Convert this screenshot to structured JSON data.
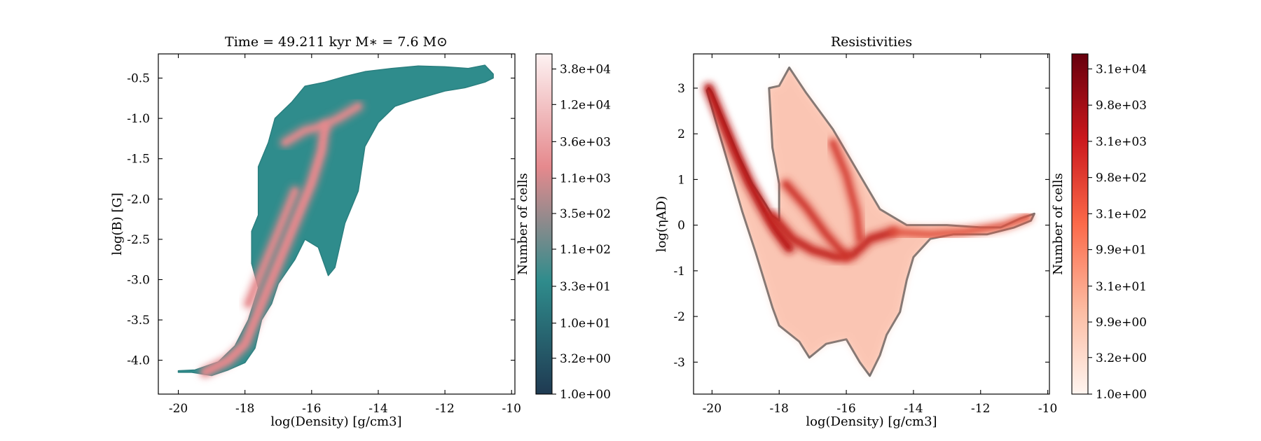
{
  "panels": [
    {
      "title": "Time = 49.211 kyr    M∗ = 7.6 M⊙",
      "xlabel": "log(Density) [g/cm3]",
      "ylabel": "log(B) [G]",
      "colormap": "teal-to-pink",
      "colorbar_label": "Number of cells"
    },
    {
      "title": "Resistivities",
      "xlabel": "log(Density) [g/cm3]",
      "ylabel": "log(ηAD)",
      "colormap": "Reds",
      "colorbar_label": "Number of cells"
    }
  ],
  "chart_data": [
    {
      "type": "heatmap",
      "title": "Time = 49.211 kyr    M∗ = 7.6 M⊙",
      "xlabel": "log(Density) [g/cm3]",
      "ylabel": "log(B) [G]",
      "xlim": [
        -20.6,
        -9.9
      ],
      "ylim": [
        -4.42,
        -0.2
      ],
      "x_ticks": [
        -20,
        -18,
        -16,
        -14,
        -12,
        -10
      ],
      "y_ticks": [
        -4.0,
        -3.5,
        -3.0,
        -2.5,
        -2.0,
        -1.5,
        -1.0,
        -0.5
      ],
      "y_tick_labels": [
        "-4.0",
        "-3.5",
        "-3.0",
        "-2.5",
        "-2.0",
        "-1.5",
        "-1.0",
        "-0.5"
      ],
      "colorbar": {
        "label": "Number of cells",
        "scale": "log",
        "range": [
          1.0,
          62000
        ],
        "tick_labels": [
          "1.0e+00",
          "3.2e+00",
          "1.0e+01",
          "3.3e+01",
          "1.1e+02",
          "3.5e+02",
          "1.1e+03",
          "3.6e+03",
          "1.2e+04",
          "3.8e+04"
        ],
        "colors": [
          "#1f3a52",
          "#2f8c8c",
          "#e5898d",
          "#fdf2f2"
        ]
      },
      "region_outline": [
        [
          -20.0,
          -4.15
        ],
        [
          -19.6,
          -4.15
        ],
        [
          -19.0,
          -4.19
        ],
        [
          -18.5,
          -4.12
        ],
        [
          -18.0,
          -4.03
        ],
        [
          -17.7,
          -3.85
        ],
        [
          -17.5,
          -3.5
        ],
        [
          -17.2,
          -3.3
        ],
        [
          -17.0,
          -3.05
        ],
        [
          -16.5,
          -2.75
        ],
        [
          -16.2,
          -2.5
        ],
        [
          -15.8,
          -2.6
        ],
        [
          -15.5,
          -2.95
        ],
        [
          -15.3,
          -2.85
        ],
        [
          -15.0,
          -2.3
        ],
        [
          -14.6,
          -1.9
        ],
        [
          -14.4,
          -1.35
        ],
        [
          -14.0,
          -1.05
        ],
        [
          -13.5,
          -0.85
        ],
        [
          -13.0,
          -0.78
        ],
        [
          -12.5,
          -0.72
        ],
        [
          -12.0,
          -0.66
        ],
        [
          -11.4,
          -0.62
        ],
        [
          -10.8,
          -0.55
        ],
        [
          -10.55,
          -0.5
        ],
        [
          -10.55,
          -0.45
        ],
        [
          -10.8,
          -0.34
        ],
        [
          -11.3,
          -0.38
        ],
        [
          -12.0,
          -0.36
        ],
        [
          -12.8,
          -0.35
        ],
        [
          -13.6,
          -0.38
        ],
        [
          -14.4,
          -0.42
        ],
        [
          -15.0,
          -0.48
        ],
        [
          -15.6,
          -0.55
        ],
        [
          -16.2,
          -0.6
        ],
        [
          -16.6,
          -0.8
        ],
        [
          -17.1,
          -1.0
        ],
        [
          -17.3,
          -1.3
        ],
        [
          -17.6,
          -1.6
        ],
        [
          -17.6,
          -2.2
        ],
        [
          -17.8,
          -2.4
        ],
        [
          -17.8,
          -2.8
        ],
        [
          -17.6,
          -3.1
        ],
        [
          -17.9,
          -3.5
        ],
        [
          -18.3,
          -3.82
        ],
        [
          -18.8,
          -4.02
        ],
        [
          -19.5,
          -4.12
        ],
        [
          -20.0,
          -4.13
        ]
      ],
      "ridges": [
        {
          "points": [
            [
              -19.2,
              -4.15
            ],
            [
              -18.5,
              -4.0
            ],
            [
              -18.0,
              -3.8
            ],
            [
              -17.6,
              -3.4
            ],
            [
              -17.2,
              -3.0
            ],
            [
              -16.8,
              -2.6
            ],
            [
              -16.4,
              -2.2
            ],
            [
              -16.0,
              -1.8
            ],
            [
              -15.7,
              -1.4
            ],
            [
              -15.6,
              -1.1
            ]
          ],
          "intensity": 0.85
        },
        {
          "points": [
            [
              -17.9,
              -3.3
            ],
            [
              -17.5,
              -2.9
            ],
            [
              -17.0,
              -2.4
            ],
            [
              -16.7,
              -2.1
            ],
            [
              -16.5,
              -1.9
            ]
          ],
          "intensity": 0.5
        },
        {
          "points": [
            [
              -16.8,
              -1.3
            ],
            [
              -16.2,
              -1.15
            ],
            [
              -15.7,
              -1.1
            ],
            [
              -15.2,
              -1.0
            ],
            [
              -14.6,
              -0.85
            ]
          ],
          "intensity": 0.45
        }
      ]
    },
    {
      "type": "heatmap",
      "title": "Resistivities",
      "xlabel": "log(Density) [g/cm3]",
      "ylabel": "log(ηAD)",
      "xlim": [
        -20.55,
        -9.95
      ],
      "ylim": [
        -3.7,
        3.75
      ],
      "x_ticks": [
        -20,
        -18,
        -16,
        -14,
        -12,
        -10
      ],
      "y_ticks": [
        -3,
        -2,
        -1,
        0,
        1,
        2,
        3
      ],
      "y_tick_labels": [
        "-3",
        "-2",
        "-1",
        "0",
        "1",
        "2",
        "3"
      ],
      "colorbar": {
        "label": "Number of cells",
        "scale": "log",
        "range": [
          1.0,
          50000
        ],
        "tick_labels": [
          "1.0e+00",
          "3.2e+00",
          "9.9e+00",
          "3.1e+01",
          "9.9e+01",
          "3.1e+02",
          "9.8e+02",
          "3.1e+03",
          "9.8e+03",
          "3.1e+04"
        ],
        "colors": [
          "#fff5f0",
          "#fcbba1",
          "#fb6a4a",
          "#cb181d",
          "#67000d"
        ]
      },
      "region_outline": [
        [
          -20.1,
          3.0
        ],
        [
          -20.0,
          2.9
        ],
        [
          -19.6,
          2.2
        ],
        [
          -19.2,
          1.5
        ],
        [
          -18.8,
          0.9
        ],
        [
          -18.4,
          0.45
        ],
        [
          -18.2,
          0.2
        ],
        [
          -18.0,
          0.1
        ],
        [
          -18.0,
          0.9
        ],
        [
          -18.2,
          1.7
        ],
        [
          -18.3,
          3.0
        ],
        [
          -18.0,
          3.05
        ],
        [
          -17.7,
          3.45
        ],
        [
          -17.2,
          2.9
        ],
        [
          -16.4,
          2.1
        ],
        [
          -15.6,
          1.1
        ],
        [
          -15.0,
          0.35
        ],
        [
          -14.2,
          0.0
        ],
        [
          -13.0,
          0.0
        ],
        [
          -12.0,
          -0.05
        ],
        [
          -11.4,
          -0.05
        ],
        [
          -10.8,
          0.15
        ],
        [
          -10.4,
          0.25
        ],
        [
          -10.5,
          0.1
        ],
        [
          -11.0,
          -0.05
        ],
        [
          -11.8,
          -0.2
        ],
        [
          -12.8,
          -0.2
        ],
        [
          -13.5,
          -0.3
        ],
        [
          -14.0,
          -0.7
        ],
        [
          -14.2,
          -1.2
        ],
        [
          -14.4,
          -1.9
        ],
        [
          -14.8,
          -2.4
        ],
        [
          -15.0,
          -2.85
        ],
        [
          -15.3,
          -3.3
        ],
        [
          -15.6,
          -3.0
        ],
        [
          -16.0,
          -2.5
        ],
        [
          -16.6,
          -2.6
        ],
        [
          -17.1,
          -2.9
        ],
        [
          -17.4,
          -2.55
        ],
        [
          -18.0,
          -2.2
        ],
        [
          -18.2,
          -1.8
        ],
        [
          -18.7,
          -0.6
        ],
        [
          -19.1,
          0.3
        ],
        [
          -19.5,
          1.3
        ],
        [
          -19.9,
          2.3
        ],
        [
          -20.15,
          2.95
        ]
      ],
      "ridges": [
        {
          "points": [
            [
              -20.1,
              3.0
            ],
            [
              -19.7,
              2.3
            ],
            [
              -19.3,
              1.6
            ],
            [
              -18.9,
              0.95
            ],
            [
              -18.5,
              0.4
            ],
            [
              -18.1,
              -0.1
            ],
            [
              -17.7,
              -0.5
            ]
          ],
          "intensity": 0.95
        },
        {
          "points": [
            [
              -18.2,
              0.2
            ],
            [
              -17.6,
              -0.3
            ],
            [
              -17.0,
              -0.55
            ],
            [
              -16.3,
              -0.7
            ],
            [
              -15.8,
              -0.65
            ],
            [
              -15.3,
              -0.3
            ],
            [
              -14.6,
              -0.15
            ]
          ],
          "intensity": 0.75
        },
        {
          "points": [
            [
              -17.8,
              0.9
            ],
            [
              -17.2,
              0.4
            ],
            [
              -16.6,
              -0.2
            ],
            [
              -16.0,
              -0.7
            ]
          ],
          "intensity": 0.6
        },
        {
          "points": [
            [
              -16.4,
              1.8
            ],
            [
              -16.0,
              1.1
            ],
            [
              -15.7,
              0.3
            ],
            [
              -15.6,
              -0.3
            ]
          ],
          "intensity": 0.5
        },
        {
          "points": [
            [
              -14.6,
              -0.15
            ],
            [
              -13.5,
              -0.2
            ],
            [
              -12.5,
              -0.15
            ],
            [
              -11.3,
              0.0
            ],
            [
              -10.6,
              0.18
            ]
          ],
          "intensity": 0.35
        }
      ]
    }
  ]
}
